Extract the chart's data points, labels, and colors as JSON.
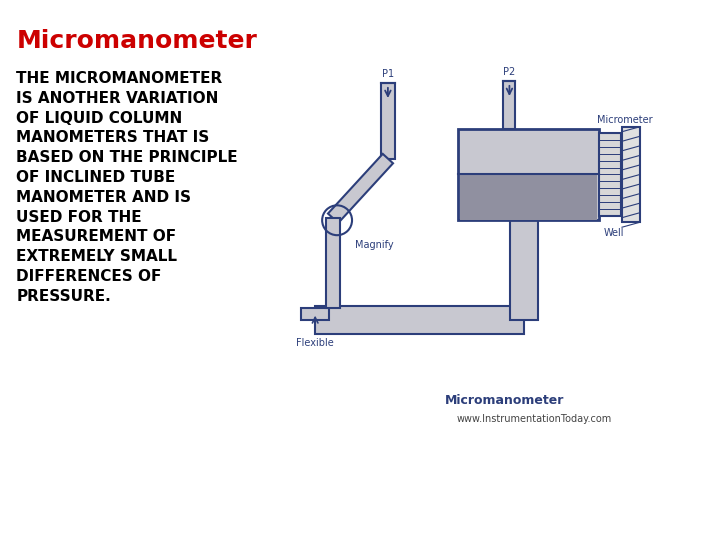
{
  "title": "Micromanometer",
  "title_color": "#cc0000",
  "title_fontsize": 18,
  "body_text": "THE MICROMANOMETER\nIS ANOTHER VARIATION\nOF LIQUID COLUMN\nMANOMETERS THAT IS\nBASED ON THE PRINCIPLE\nOF INCLINED TUBE\nMANOMETER AND IS\nUSED FOR THE\nMEASUREMENT OF\nEXTREMELY SMALL\nDIFFERENCES OF\nPRESSURE.",
  "body_fontsize": 11,
  "body_color": "#000000",
  "bg_color": "#ffffff",
  "diagram_label": "Micromanometer",
  "diagram_label_fontsize": 9,
  "diagram_source": "www.InstrumentationToday.com",
  "diagram_source_fontsize": 7,
  "label_p1": "P1",
  "label_p2": "P2",
  "label_magnify": "Magnify",
  "label_well": "Well",
  "label_flexible": "Flexible",
  "label_micrometer": "Micrometer",
  "tube_color": "#2c3e7a",
  "fill_color": "#b8b8c0",
  "line_width": 1.5,
  "tube_fill": "#c8c8d0",
  "liquid_fill": "#9090a0"
}
